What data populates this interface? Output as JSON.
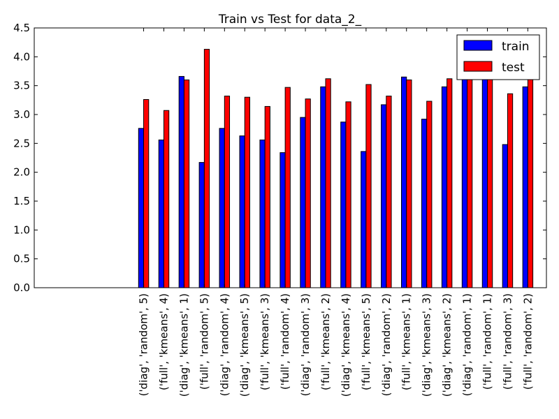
{
  "chart_data": {
    "type": "bar",
    "title": "Train vs Test for data_2_",
    "xlabel": "",
    "ylabel": "",
    "ylim": [
      0,
      4.5
    ],
    "yticks": [
      "0.0",
      "0.5",
      "1.0",
      "1.5",
      "2.0",
      "2.5",
      "3.0",
      "3.5",
      "4.0",
      "4.5"
    ],
    "legend_position": "top-right",
    "grid": false,
    "categories": [
      "('diag', 'random', 5)",
      "('full', 'kmeans', 4)",
      "('diag', 'kmeans', 1)",
      "('full', 'random', 5)",
      "('diag', 'random', 4)",
      "('diag', 'kmeans', 5)",
      "('full', 'kmeans', 3)",
      "('full', 'random', 4)",
      "('diag', 'random', 3)",
      "('full', 'kmeans', 2)",
      "('diag', 'kmeans', 4)",
      "('full', 'kmeans', 5)",
      "('diag', 'random', 2)",
      "('full', 'kmeans', 1)",
      "('diag', 'kmeans', 3)",
      "('diag', 'kmeans', 2)",
      "('diag', 'random', 1)",
      "('full', 'random', 1)",
      "('full', 'random', 3)",
      "('full', 'random', 2)"
    ],
    "series": [
      {
        "name": "train",
        "color": "#0000ff",
        "values": [
          2.76,
          2.56,
          3.66,
          2.17,
          2.76,
          2.63,
          2.56,
          2.34,
          2.95,
          3.48,
          2.87,
          2.36,
          3.17,
          3.65,
          2.92,
          3.48,
          3.62,
          3.62,
          2.48,
          3.48
        ]
      },
      {
        "name": "test",
        "color": "#ff0000",
        "values": [
          3.26,
          3.07,
          3.6,
          4.13,
          3.32,
          3.3,
          3.14,
          3.47,
          3.27,
          3.62,
          3.22,
          3.52,
          3.32,
          3.6,
          3.23,
          3.62,
          3.62,
          3.62,
          3.36,
          3.62
        ]
      }
    ]
  }
}
